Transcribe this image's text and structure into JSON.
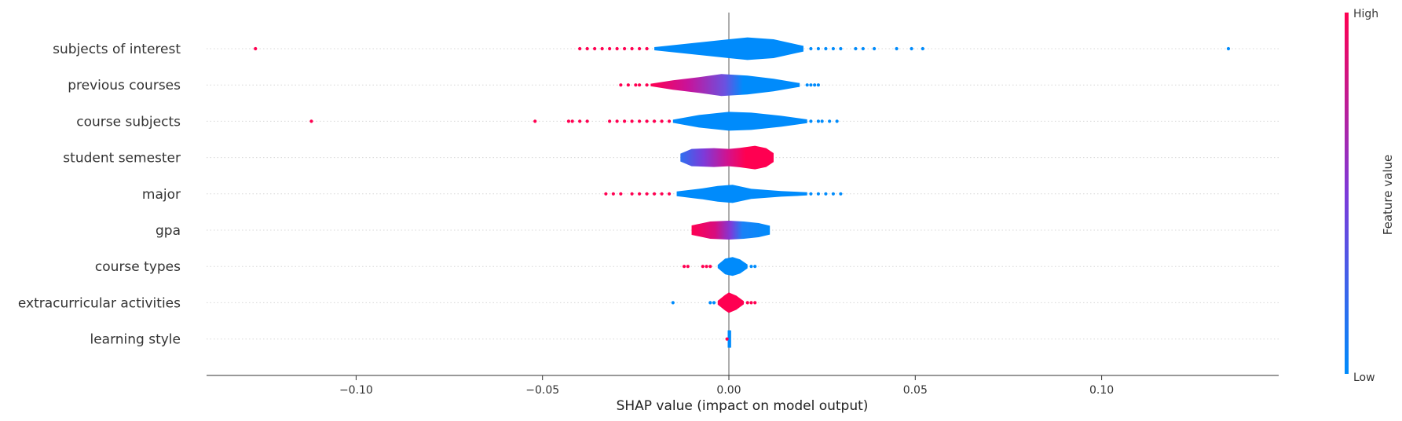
{
  "chart_data": {
    "type": "violin",
    "xlabel": "SHAP value (impact on model output)",
    "xlim": [
      -0.14,
      0.147
    ],
    "xticks": [
      -0.1,
      -0.05,
      0.0,
      0.05,
      0.1
    ],
    "xtick_labels": [
      "−0.10",
      "−0.05",
      "0.00",
      "0.05",
      "0.10"
    ],
    "colorbar": {
      "label": "Feature value",
      "high": "High",
      "low": "Low",
      "low_color": "#008bfb",
      "high_color": "#ff0051"
    },
    "grid": "dotted horizontal",
    "features": [
      {
        "name": "subjects of interest",
        "color": "low",
        "body": [
          [
            -0.02,
            0.1
          ],
          [
            -0.01,
            0.35
          ],
          [
            0,
            0.6
          ],
          [
            0.005,
            0.72
          ],
          [
            0.012,
            0.6
          ],
          [
            0.02,
            0.18
          ]
        ],
        "outliers": [
          [
            -0.127,
            1
          ],
          [
            -0.04,
            1
          ],
          [
            -0.038,
            1
          ],
          [
            -0.036,
            1
          ],
          [
            -0.034,
            1
          ],
          [
            -0.032,
            1
          ],
          [
            -0.03,
            1
          ],
          [
            -0.028,
            1
          ],
          [
            -0.026,
            1
          ],
          [
            -0.024,
            1
          ],
          [
            -0.022,
            1
          ],
          [
            0.022,
            0
          ],
          [
            0.024,
            0
          ],
          [
            0.026,
            0
          ],
          [
            0.028,
            0
          ],
          [
            0.03,
            0
          ],
          [
            0.034,
            0
          ],
          [
            0.036,
            0
          ],
          [
            0.039,
            0
          ],
          [
            0.045,
            0
          ],
          [
            0.049,
            0
          ],
          [
            0.052,
            0
          ],
          [
            0.134,
            0
          ]
        ]
      },
      {
        "name": "previous courses",
        "color": "gradient-left",
        "body": [
          [
            -0.021,
            0.08
          ],
          [
            -0.015,
            0.3
          ],
          [
            -0.008,
            0.5
          ],
          [
            -0.002,
            0.7
          ],
          [
            0.005,
            0.6
          ],
          [
            0.012,
            0.4
          ],
          [
            0.019,
            0.12
          ]
        ],
        "outliers": [
          [
            -0.029,
            1
          ],
          [
            -0.027,
            1
          ],
          [
            -0.025,
            1
          ],
          [
            -0.024,
            1
          ],
          [
            -0.022,
            1
          ],
          [
            0.021,
            0
          ],
          [
            0.022,
            0
          ],
          [
            0.023,
            0
          ],
          [
            0.024,
            0
          ]
        ]
      },
      {
        "name": "course subjects",
        "color": "low",
        "body": [
          [
            -0.015,
            0.1
          ],
          [
            -0.008,
            0.4
          ],
          [
            0,
            0.6
          ],
          [
            0.006,
            0.55
          ],
          [
            0.014,
            0.35
          ],
          [
            0.021,
            0.12
          ]
        ],
        "outliers": [
          [
            -0.112,
            1
          ],
          [
            -0.052,
            1
          ],
          [
            -0.043,
            1
          ],
          [
            -0.042,
            1
          ],
          [
            -0.04,
            1
          ],
          [
            -0.038,
            1
          ],
          [
            -0.032,
            1
          ],
          [
            -0.03,
            1
          ],
          [
            -0.028,
            1
          ],
          [
            -0.026,
            1
          ],
          [
            -0.024,
            1
          ],
          [
            -0.022,
            1
          ],
          [
            -0.02,
            1
          ],
          [
            -0.018,
            1
          ],
          [
            -0.016,
            1
          ],
          [
            0.022,
            0
          ],
          [
            0.024,
            0
          ],
          [
            0.025,
            0
          ],
          [
            0.027,
            0
          ],
          [
            0.029,
            0
          ]
        ]
      },
      {
        "name": "student semester",
        "color": "gradient-right",
        "body": [
          [
            -0.013,
            0.25
          ],
          [
            -0.01,
            0.55
          ],
          [
            -0.004,
            0.6
          ],
          [
            0,
            0.55
          ],
          [
            0.003,
            0.62
          ],
          [
            0.007,
            0.75
          ],
          [
            0.01,
            0.6
          ],
          [
            0.012,
            0.28
          ]
        ],
        "outliers": []
      },
      {
        "name": "major",
        "color": "low",
        "body": [
          [
            -0.014,
            0.15
          ],
          [
            -0.007,
            0.35
          ],
          [
            -0.003,
            0.5
          ],
          [
            0.001,
            0.58
          ],
          [
            0.006,
            0.32
          ],
          [
            0.014,
            0.18
          ],
          [
            0.021,
            0.1
          ]
        ],
        "outliers": [
          [
            -0.033,
            1
          ],
          [
            -0.031,
            1
          ],
          [
            -0.029,
            1
          ],
          [
            -0.026,
            1
          ],
          [
            -0.024,
            1
          ],
          [
            -0.022,
            1
          ],
          [
            -0.02,
            1
          ],
          [
            -0.018,
            1
          ],
          [
            -0.016,
            1
          ],
          [
            0.022,
            0
          ],
          [
            0.024,
            0
          ],
          [
            0.026,
            0
          ],
          [
            0.028,
            0
          ],
          [
            0.03,
            0
          ]
        ]
      },
      {
        "name": "gpa",
        "color": "gradient-mixed",
        "body": [
          [
            -0.01,
            0.3
          ],
          [
            -0.005,
            0.55
          ],
          [
            0,
            0.6
          ],
          [
            0.004,
            0.55
          ],
          [
            0.008,
            0.45
          ],
          [
            0.011,
            0.28
          ]
        ],
        "outliers": []
      },
      {
        "name": "course types",
        "color": "low",
        "body": [
          [
            -0.003,
            0.1
          ],
          [
            -0.001,
            0.5
          ],
          [
            0.001,
            0.6
          ],
          [
            0.003,
            0.45
          ],
          [
            0.005,
            0.12
          ]
        ],
        "outliers": [
          [
            -0.012,
            1
          ],
          [
            -0.011,
            1
          ],
          [
            -0.007,
            1
          ],
          [
            -0.006,
            1
          ],
          [
            -0.005,
            1
          ],
          [
            0.006,
            0
          ],
          [
            0.007,
            0
          ]
        ]
      },
      {
        "name": "extracurricular activities",
        "color": "high",
        "body": [
          [
            -0.003,
            0.12
          ],
          [
            -0.001,
            0.5
          ],
          [
            0,
            0.65
          ],
          [
            0.002,
            0.45
          ],
          [
            0.004,
            0.1
          ]
        ],
        "outliers": [
          [
            -0.015,
            0
          ],
          [
            -0.005,
            0
          ],
          [
            -0.004,
            0
          ],
          [
            0.005,
            1
          ],
          [
            0.006,
            1
          ],
          [
            0.007,
            1
          ]
        ]
      },
      {
        "name": "learning style",
        "color": "low",
        "body": [
          [
            0,
            0.55
          ],
          [
            0.0006,
            0.55
          ]
        ],
        "outliers": [
          [
            -0.0005,
            1
          ]
        ]
      }
    ]
  }
}
